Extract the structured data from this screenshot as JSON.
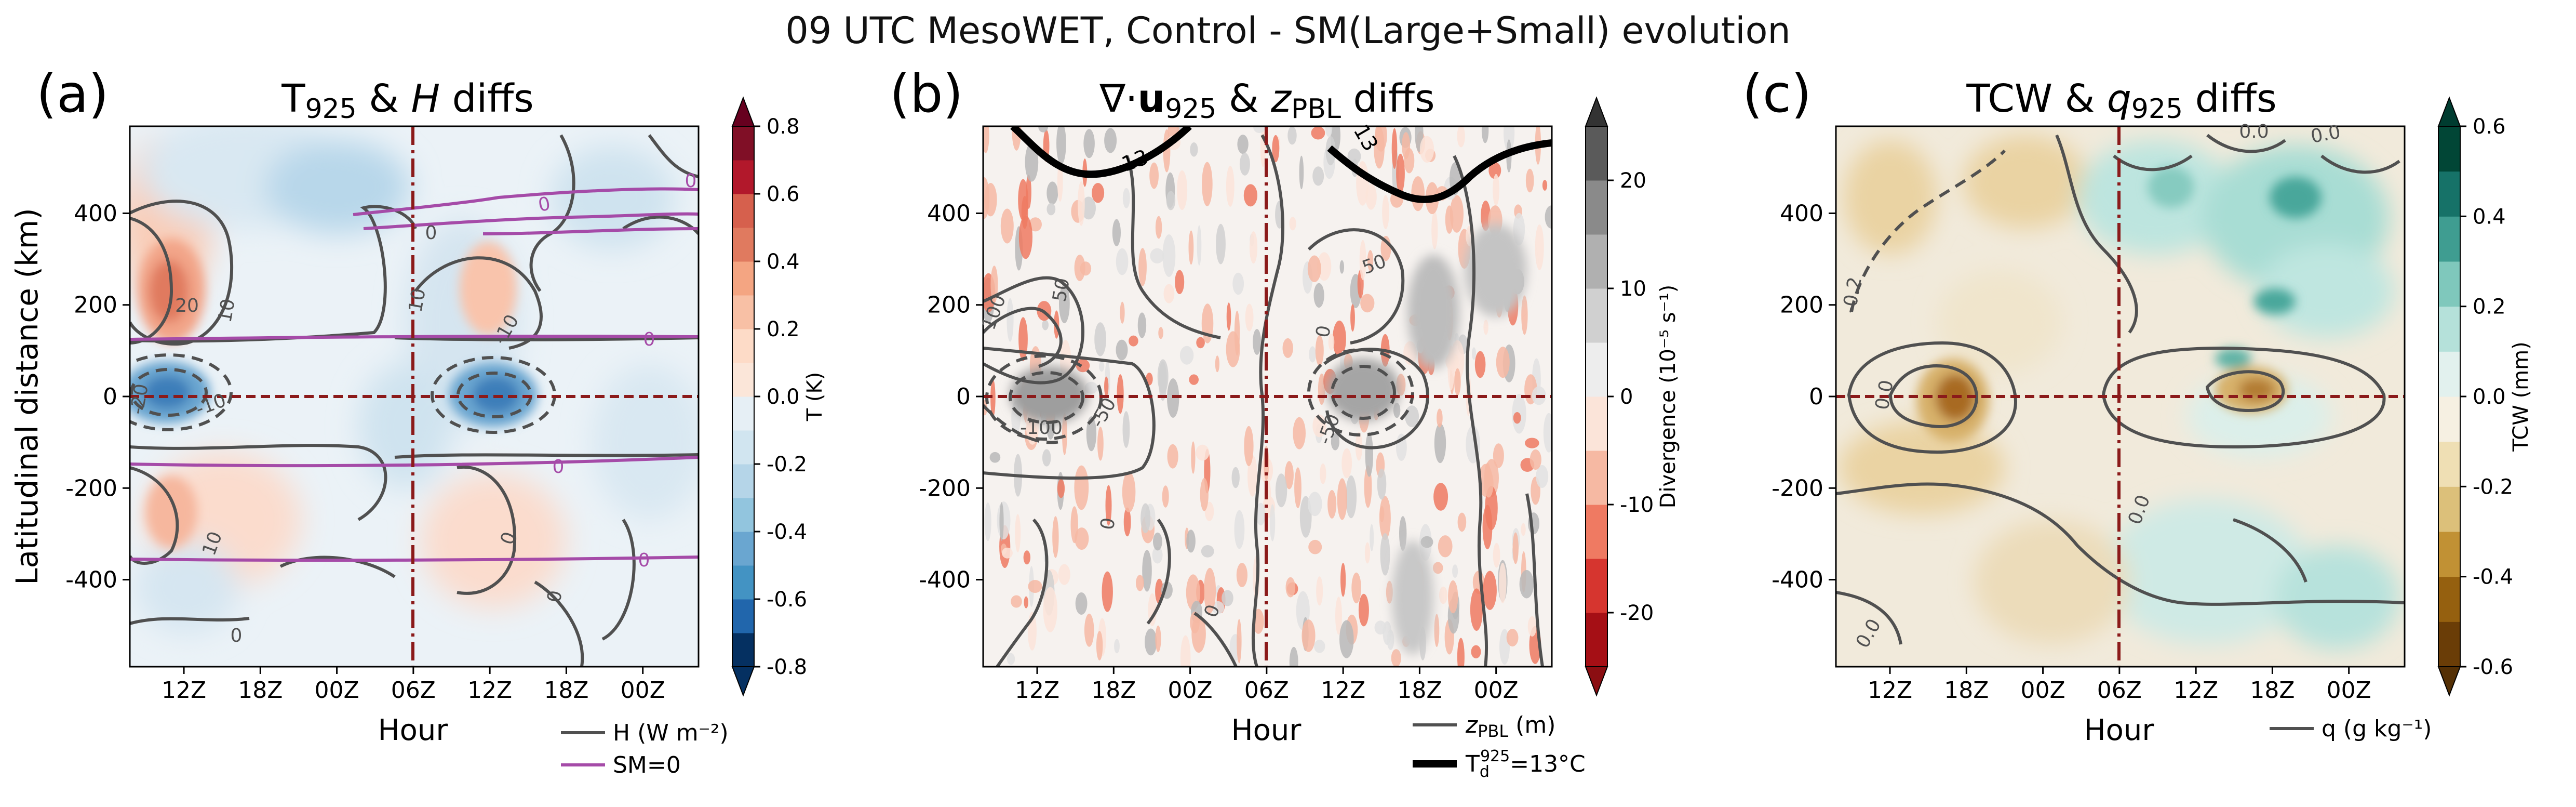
{
  "figure": {
    "suptitle": "09 UTC MesoWET, Control - SM(Large+Small) evolution",
    "shared_ylabel": "Latitudinal distance (km)",
    "shared_xlabel": "Hour"
  },
  "colors": {
    "contour_grey": "#505050",
    "sm_zero_purple": "#a54ba8",
    "dashed_line_red": "#8b1a1a",
    "thick_contour_black": "#000000"
  },
  "chart_data": [
    {
      "type": "heatmap",
      "panel_label": "(a)",
      "title": "T925 & H diffs",
      "xlabel": "Hour",
      "ylabel": "Latitudinal distance (km)",
      "x_ticks": [
        "12Z",
        "18Z",
        "00Z",
        "06Z",
        "12Z",
        "18Z",
        "00Z"
      ],
      "y_ticks": [
        400,
        200,
        0,
        -200,
        -400
      ],
      "ylim": [
        -590,
        590
      ],
      "colorbar": {
        "label": "T (K)",
        "ticks": [
          0.8,
          0.6,
          0.4,
          0.2,
          0.0,
          -0.2,
          -0.4,
          -0.6,
          -0.8
        ],
        "tick_labels": [
          "0.8",
          "0.6",
          "0.4",
          "0.2",
          "0.0",
          "-0.2",
          "-0.4",
          "-0.6",
          "-0.8"
        ],
        "range": [
          -0.8,
          0.8
        ],
        "levels": 16,
        "colormap": "RdBu_r",
        "extend": "both"
      },
      "contour_labels": [
        "20",
        "10",
        "-10",
        "-20",
        "10",
        "0",
        "-10",
        "10",
        "0",
        "0",
        "0"
      ],
      "sm_labels": [
        "0",
        "0",
        "0",
        "0",
        "0"
      ],
      "legend": [
        {
          "label": "H (W m⁻²)",
          "style": "grey-line"
        },
        {
          "label": "SM=0",
          "style": "purple-line"
        }
      ],
      "hot_spots": [
        {
          "hour": 12,
          "y": 210,
          "value": 0.45
        },
        {
          "hour": 37,
          "y": 210,
          "value": 0.25
        },
        {
          "hour": 12,
          "y": 0,
          "value": -0.55
        },
        {
          "hour": 38,
          "y": 0,
          "value": -0.55
        }
      ]
    },
    {
      "type": "heatmap",
      "panel_label": "(b)",
      "title": "∇·u925 & zPBL diffs",
      "xlabel": "Hour",
      "x_ticks": [
        "12Z",
        "18Z",
        "00Z",
        "06Z",
        "12Z",
        "18Z",
        "00Z"
      ],
      "y_ticks": [
        400,
        200,
        0,
        -200,
        -400
      ],
      "ylim": [
        -590,
        590
      ],
      "colorbar": {
        "label": "Divergence (10⁻⁵ s⁻¹)",
        "ticks": [
          20,
          10,
          0,
          -10,
          -20
        ],
        "tick_labels": [
          "20",
          "10",
          "0",
          "-10",
          "-20"
        ],
        "range": [
          -25,
          25
        ],
        "levels": 10,
        "colormap": "RdGy_r",
        "extend": "both"
      },
      "contour_labels": [
        "100",
        "50",
        "-100",
        "-50",
        "50",
        "-50",
        "0",
        "0",
        "0"
      ],
      "dewpoint_labels": [
        "13",
        "13"
      ],
      "legend": [
        {
          "label": "zPBL (m)",
          "style": "grey-line"
        },
        {
          "label": "T_d^925=13°C",
          "style": "black-thick-line"
        }
      ]
    },
    {
      "type": "heatmap",
      "panel_label": "(c)",
      "title": "TCW & q925 diffs",
      "xlabel": "Hour",
      "x_ticks": [
        "12Z",
        "18Z",
        "00Z",
        "06Z",
        "12Z",
        "18Z",
        "00Z"
      ],
      "y_ticks": [
        400,
        200,
        0,
        -200,
        -400
      ],
      "ylim": [
        -590,
        590
      ],
      "colorbar": {
        "label": "TCW (mm)",
        "ticks": [
          0.6,
          0.4,
          0.2,
          0.0,
          -0.2,
          -0.4,
          -0.6
        ],
        "tick_labels": [
          "0.6",
          "0.4",
          "0.2",
          "0.0",
          "-0.2",
          "-0.4",
          "-0.6"
        ],
        "range": [
          -0.6,
          0.6
        ],
        "levels": 12,
        "colormap": "BrBG",
        "extend": "both"
      },
      "contour_labels": [
        "-0.2",
        "0.0",
        "0.0",
        "0.0",
        "0.0",
        "0.0"
      ],
      "legend": [
        {
          "label": "q (g kg⁻¹)",
          "style": "grey-line"
        }
      ]
    }
  ]
}
